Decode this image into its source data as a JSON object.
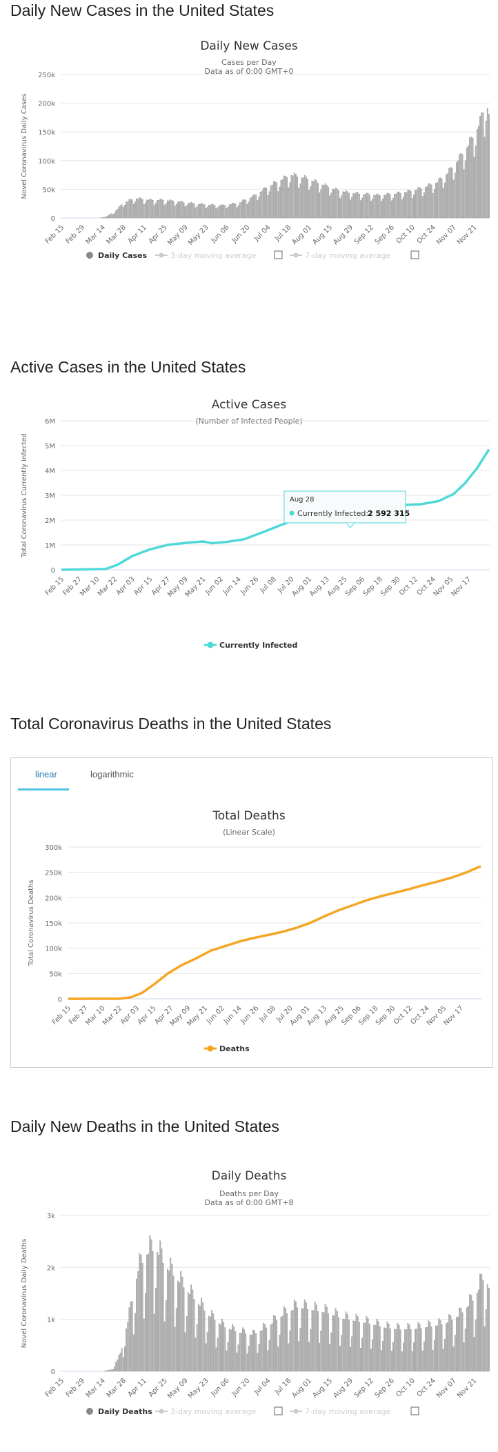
{
  "sections": {
    "s1": "Daily New Cases in the United States",
    "s2": "Active Cases in the United States",
    "s3": "Total Coronavirus Deaths in the United States",
    "s4": "Daily New Deaths in the United States"
  },
  "tabs": {
    "linear": "linear",
    "logarithmic": "logarithmic"
  },
  "tooltip": {
    "date": "Aug 28",
    "label": "Currently Infected:",
    "value": "2 592 315"
  },
  "chart_data": [
    {
      "type": "bar",
      "title": "Daily New Cases",
      "subtitle": "Cases per Day",
      "subtitle2": "Data as of 0:00 GMT+0",
      "ylabel": "Novel Coronavirus Daily Cases",
      "ylim": [
        0,
        250000
      ],
      "yticks": [
        "0",
        "50k",
        "100k",
        "150k",
        "200k",
        "250k"
      ],
      "xticks": [
        "Feb 15",
        "Feb 29",
        "Mar 14",
        "Mar 28",
        "Apr 11",
        "Apr 25",
        "May 09",
        "May 23",
        "Jun 06",
        "Jun 20",
        "Jul 04",
        "Jul 18",
        "Aug 01",
        "Aug 15",
        "Aug 29",
        "Sep 12",
        "Sep 26",
        "Oct 10",
        "Oct 24",
        "Nov 07",
        "Nov 21"
      ],
      "legend": [
        "Daily Cases",
        "3-day moving average",
        "7-day moving average"
      ],
      "keyframes": [
        [
          0,
          0
        ],
        [
          26,
          0
        ],
        [
          30,
          2000
        ],
        [
          36,
          10000
        ],
        [
          42,
          25000
        ],
        [
          50,
          33000
        ],
        [
          60,
          30000
        ],
        [
          70,
          30000
        ],
        [
          80,
          27000
        ],
        [
          90,
          24000
        ],
        [
          100,
          22000
        ],
        [
          110,
          21000
        ],
        [
          120,
          25000
        ],
        [
          130,
          36000
        ],
        [
          140,
          52000
        ],
        [
          150,
          65000
        ],
        [
          156,
          72000
        ],
        [
          165,
          67000
        ],
        [
          175,
          58000
        ],
        [
          185,
          48000
        ],
        [
          195,
          42000
        ],
        [
          205,
          40000
        ],
        [
          215,
          38000
        ],
        [
          225,
          40000
        ],
        [
          235,
          44000
        ],
        [
          245,
          50000
        ],
        [
          255,
          60000
        ],
        [
          262,
          75000
        ],
        [
          270,
          100000
        ],
        [
          278,
          130000
        ],
        [
          284,
          160000
        ],
        [
          288,
          195000
        ],
        [
          290,
          175000
        ]
      ],
      "weekly_amplitude": 0.22
    },
    {
      "type": "line",
      "title": "Active Cases",
      "subtitle": "(Number of Infected People)",
      "ylabel": "Total Coronavirus Currently Infected",
      "ylim": [
        0,
        6000000
      ],
      "yticks": [
        "0",
        "1M",
        "2M",
        "3M",
        "4M",
        "5M",
        "6M"
      ],
      "xticks": [
        "Feb 15",
        "Feb 27",
        "Mar 10",
        "Mar 22",
        "Apr 03",
        "Apr 15",
        "Apr 27",
        "May 09",
        "May 21",
        "Jun 02",
        "Jun 14",
        "Jun 26",
        "Jul 08",
        "Jul 20",
        "Aug 01",
        "Aug 13",
        "Aug 25",
        "Sep 06",
        "Sep 18",
        "Sep 30",
        "Oct 12",
        "Oct 24",
        "Nov 05",
        "Nov 17"
      ],
      "series_name": "Currently Infected",
      "color": "#4fd8d8",
      "keyframes": [
        [
          0,
          0
        ],
        [
          30,
          30000
        ],
        [
          38,
          200000
        ],
        [
          48,
          550000
        ],
        [
          60,
          820000
        ],
        [
          72,
          1000000
        ],
        [
          84,
          1080000
        ],
        [
          96,
          1140000
        ],
        [
          102,
          1070000
        ],
        [
          112,
          1120000
        ],
        [
          124,
          1230000
        ],
        [
          136,
          1500000
        ],
        [
          148,
          1780000
        ],
        [
          160,
          2050000
        ],
        [
          172,
          2300000
        ],
        [
          184,
          2450000
        ],
        [
          196,
          2592315
        ],
        [
          208,
          2620000
        ],
        [
          220,
          2600000
        ],
        [
          232,
          2610000
        ],
        [
          244,
          2640000
        ],
        [
          256,
          2770000
        ],
        [
          266,
          3050000
        ],
        [
          274,
          3500000
        ],
        [
          282,
          4100000
        ],
        [
          290,
          4850000
        ]
      ]
    },
    {
      "type": "line",
      "title": "Total Deaths",
      "subtitle": "(Linear Scale)",
      "ylabel": "Total Coronavirus Deaths",
      "ylim": [
        0,
        300000
      ],
      "yticks": [
        "0",
        "50k",
        "100k",
        "150k",
        "200k",
        "250k",
        "300k"
      ],
      "xticks": [
        "Feb 15",
        "Feb 27",
        "Mar 10",
        "Mar 22",
        "Apr 03",
        "Apr 15",
        "Apr 27",
        "May 09",
        "May 21",
        "Jun 02",
        "Jun 14",
        "Jun 26",
        "Jul 08",
        "Jul 20",
        "Aug 01",
        "Aug 13",
        "Aug 25",
        "Sep 06",
        "Sep 18",
        "Sep 30",
        "Oct 12",
        "Oct 24",
        "Nov 05",
        "Nov 17"
      ],
      "series_name": "Deaths",
      "color": "#f5a623",
      "keyframes": [
        [
          0,
          0
        ],
        [
          36,
          200
        ],
        [
          44,
          3000
        ],
        [
          52,
          12000
        ],
        [
          60,
          28000
        ],
        [
          70,
          50000
        ],
        [
          80,
          67000
        ],
        [
          90,
          80000
        ],
        [
          100,
          95000
        ],
        [
          110,
          104000
        ],
        [
          120,
          113000
        ],
        [
          130,
          120000
        ],
        [
          140,
          126000
        ],
        [
          150,
          132000
        ],
        [
          160,
          140000
        ],
        [
          170,
          150000
        ],
        [
          180,
          163000
        ],
        [
          190,
          175000
        ],
        [
          200,
          185000
        ],
        [
          210,
          195000
        ],
        [
          220,
          203000
        ],
        [
          230,
          210000
        ],
        [
          240,
          217000
        ],
        [
          250,
          225000
        ],
        [
          260,
          232000
        ],
        [
          270,
          240000
        ],
        [
          280,
          250000
        ],
        [
          290,
          262000
        ]
      ]
    },
    {
      "type": "bar",
      "title": "Daily Deaths",
      "subtitle": "Deaths per Day",
      "subtitle2": "Data as of 0:00 GMT+8",
      "ylabel": "Novel Coronavirus Daily Deaths",
      "ylim": [
        0,
        3000
      ],
      "yticks": [
        "0",
        "1k",
        "2k",
        "3k"
      ],
      "xticks": [
        "Feb 15",
        "Feb 29",
        "Mar 14",
        "Mar 28",
        "Apr 11",
        "Apr 25",
        "May 09",
        "May 23",
        "Jun 06",
        "Jun 20",
        "Jul 04",
        "Jul 18",
        "Aug 01",
        "Aug 15",
        "Aug 29",
        "Sep 12",
        "Sep 26",
        "Oct 10",
        "Oct 24",
        "Nov 07",
        "Nov 21"
      ],
      "legend": [
        "Daily Deaths",
        "3-day moving average",
        "7-day moving average"
      ],
      "keyframes": [
        [
          0,
          0
        ],
        [
          28,
          0
        ],
        [
          34,
          30
        ],
        [
          40,
          300
        ],
        [
          46,
          1000
        ],
        [
          52,
          1800
        ],
        [
          58,
          2100
        ],
        [
          64,
          2200
        ],
        [
          70,
          1900
        ],
        [
          80,
          1600
        ],
        [
          90,
          1300
        ],
        [
          100,
          1000
        ],
        [
          110,
          800
        ],
        [
          120,
          700
        ],
        [
          130,
          650
        ],
        [
          140,
          800
        ],
        [
          150,
          1000
        ],
        [
          160,
          1150
        ],
        [
          170,
          1100
        ],
        [
          180,
          1050
        ],
        [
          190,
          950
        ],
        [
          200,
          900
        ],
        [
          210,
          850
        ],
        [
          220,
          780
        ],
        [
          230,
          750
        ],
        [
          240,
          760
        ],
        [
          250,
          800
        ],
        [
          260,
          850
        ],
        [
          270,
          1000
        ],
        [
          280,
          1300
        ],
        [
          287,
          1700
        ],
        [
          290,
          1500
        ]
      ],
      "weekly_amplitude": 0.45
    }
  ]
}
